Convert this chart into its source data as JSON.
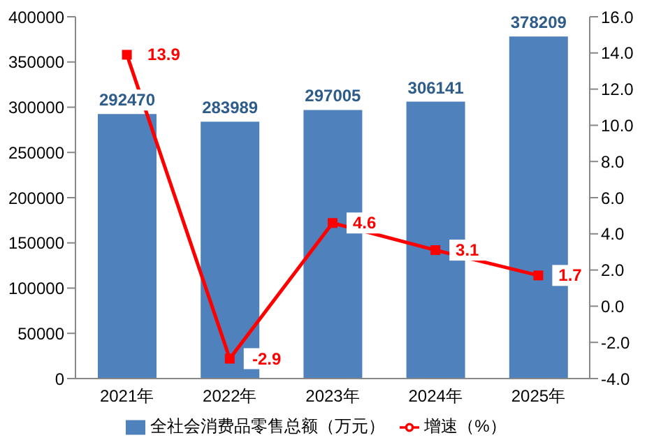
{
  "chart_data": {
    "type": "bar",
    "categories": [
      "2021年",
      "2022年",
      "2023年",
      "2024年",
      "2025年"
    ],
    "series": [
      {
        "name": "全社会消费品零售总额（万元）",
        "color": "#4f81bd",
        "values": [
          292470,
          283989,
          297005,
          306141,
          378209
        ]
      },
      {
        "name": "增速（%）",
        "type": "line",
        "axis": "y2",
        "color": "#ff0000",
        "values": [
          13.9,
          -2.9,
          4.6,
          3.1,
          1.7
        ]
      }
    ],
    "ylim": [
      0,
      400000
    ],
    "yticks": [
      0,
      50000,
      100000,
      150000,
      200000,
      250000,
      300000,
      350000,
      400000
    ],
    "y2lim": [
      -4,
      16
    ],
    "y2ticks": [
      {
        "value": -4,
        "label": "-4.0"
      },
      {
        "value": -2,
        "label": "-2.0"
      },
      {
        "value": 0,
        "label": "0.0"
      },
      {
        "value": 2,
        "label": "2.0"
      },
      {
        "value": 4,
        "label": "4.0"
      },
      {
        "value": 6,
        "label": "6.0"
      },
      {
        "value": 8,
        "label": "8.0"
      },
      {
        "value": 10,
        "label": "10.0"
      },
      {
        "value": 12,
        "label": "12.0"
      },
      {
        "value": 14,
        "label": "14.0"
      },
      {
        "value": 16,
        "label": "16.0"
      }
    ],
    "data_labels": true,
    "legend": "bottom",
    "marker": "square",
    "grid": false
  }
}
